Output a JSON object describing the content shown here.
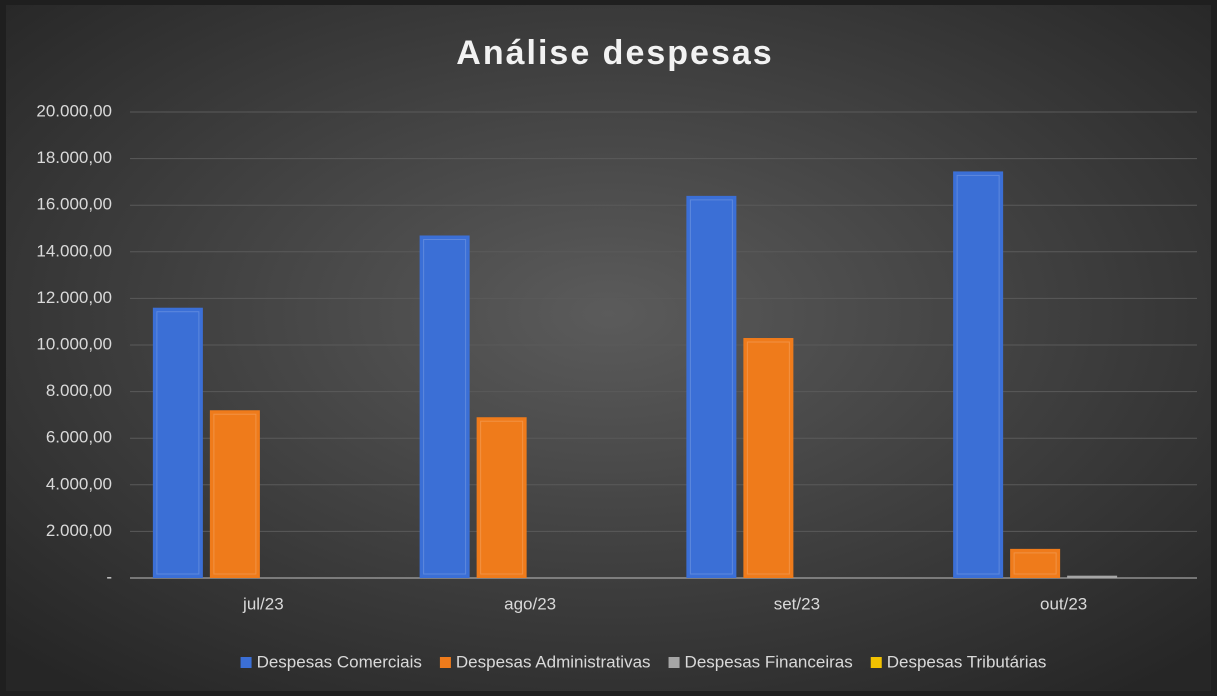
{
  "chart_data": {
    "type": "bar",
    "title": "Análise despesas",
    "categories": [
      "jul/23",
      "ago/23",
      "set/23",
      "out/23"
    ],
    "series": [
      {
        "name": "Despesas Comerciais",
        "color": "#3b6fd6",
        "values": [
          11600,
          14700,
          16400,
          17450
        ]
      },
      {
        "name": "Despesas Administrativas",
        "color": "#ef7b1b",
        "values": [
          7200,
          6900,
          10300,
          1250
        ]
      },
      {
        "name": "Despesas Financeiras",
        "color": "#a6a6a6",
        "values": [
          0,
          0,
          0,
          100
        ]
      },
      {
        "name": "Despesas Tributárias",
        "color": "#f2c200",
        "values": [
          0,
          0,
          0,
          0
        ]
      }
    ],
    "ylim": [
      0,
      20000
    ],
    "yticks": [
      {
        "value": 0,
        "label": "-"
      },
      {
        "value": 2000,
        "label": "2.000,00"
      },
      {
        "value": 4000,
        "label": "4.000,00"
      },
      {
        "value": 6000,
        "label": "6.000,00"
      },
      {
        "value": 8000,
        "label": "8.000,00"
      },
      {
        "value": 10000,
        "label": "10.000,00"
      },
      {
        "value": 12000,
        "label": "12.000,00"
      },
      {
        "value": 14000,
        "label": "14.000,00"
      },
      {
        "value": 16000,
        "label": "16.000,00"
      },
      {
        "value": 18000,
        "label": "18.000,00"
      },
      {
        "value": 20000,
        "label": "20.000,00"
      }
    ],
    "grid": true,
    "legend": "bottom"
  }
}
